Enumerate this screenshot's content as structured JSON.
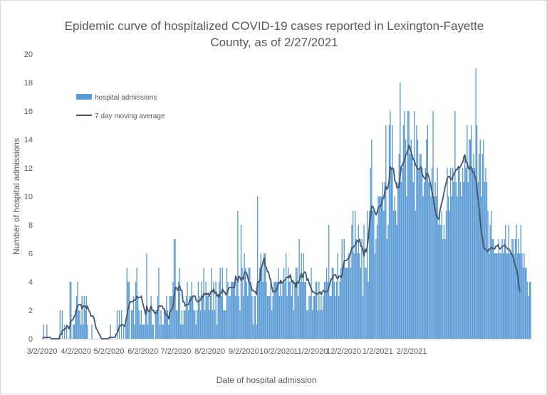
{
  "chart_data": {
    "type": "bar",
    "title": "Epidemic curve of hospitalized COVID-19 cases reported in Lexington-Fayette County, as of 2/27/2021",
    "title_lines": [
      "Epidemic curve of hospitalized COVID-19 cases reported in Lexington-Fayette",
      "County, as of 2/27/2021"
    ],
    "xlabel": "Date of hospital admission",
    "ylabel": "Number of hospital admissions",
    "ylim": [
      0,
      20
    ],
    "y_ticks": [
      "0",
      "2",
      "4",
      "6",
      "8",
      "10",
      "12",
      "14",
      "16",
      "18",
      "20"
    ],
    "x_ticks": [
      "3/2/2020",
      "4/2/2020",
      "5/2/2020",
      "6/2/2020",
      "7/2/2020",
      "8/2/2020",
      "9/2/2020",
      "10/2/2020",
      "11/2/2020",
      "12/2/2020",
      "1/2/2021",
      "2/2/2021"
    ],
    "grid": false,
    "legend_position": "top-left",
    "colors": {
      "bars": "#5b9bd5",
      "line": "#44546a"
    },
    "series": [
      {
        "name": "hospital admissions",
        "type": "bar",
        "values": [
          0,
          1,
          0,
          0,
          1,
          0,
          0,
          0,
          0,
          0,
          0,
          0,
          0,
          0,
          0,
          0,
          2,
          0,
          2,
          0,
          1,
          0,
          1,
          0,
          0,
          4,
          4,
          0,
          1,
          1,
          2,
          3,
          4,
          2,
          2,
          1,
          3,
          1,
          3,
          2,
          3,
          1,
          0,
          0,
          0,
          1,
          0,
          0,
          0,
          0,
          0,
          0,
          0,
          0,
          0,
          0,
          0,
          0,
          0,
          0,
          0,
          0,
          1,
          0,
          0,
          0,
          0,
          0,
          2,
          0,
          2,
          0,
          2,
          0,
          1,
          0,
          1,
          5,
          4,
          4,
          0,
          2,
          2,
          3,
          1,
          4,
          5,
          3,
          2,
          1,
          2,
          1,
          1,
          1,
          2,
          6,
          1,
          2,
          2,
          3,
          1,
          1,
          0,
          2,
          2,
          3,
          5,
          1,
          2,
          1,
          1,
          2,
          2,
          3,
          2,
          1,
          3,
          3,
          3,
          4,
          7,
          7,
          2,
          2,
          4,
          5,
          1,
          2,
          1,
          2,
          2,
          3,
          4,
          2,
          3,
          3,
          4,
          3,
          2,
          2,
          1,
          2,
          4,
          3,
          2,
          4,
          3,
          5,
          2,
          4,
          3,
          3,
          2,
          3,
          5,
          2,
          4,
          2,
          4,
          1,
          3,
          4,
          5,
          3,
          5,
          2,
          2,
          2,
          5,
          4,
          3,
          3,
          4,
          4,
          4,
          4,
          3,
          4,
          9,
          3,
          2,
          8,
          5,
          3,
          6,
          5,
          4,
          3,
          5,
          5,
          4,
          3,
          1,
          3,
          3,
          1,
          10,
          4,
          5,
          6,
          5,
          4,
          6,
          6,
          4,
          3,
          3,
          3,
          4,
          2,
          3,
          4,
          4,
          4,
          4,
          5,
          3,
          4,
          3,
          4,
          5,
          4,
          6,
          3,
          5,
          4,
          4,
          3,
          4,
          2,
          4,
          5,
          5,
          3,
          7,
          4,
          6,
          4,
          6,
          4,
          4,
          2,
          2,
          3,
          3,
          5,
          2,
          3,
          3,
          4,
          4,
          2,
          4,
          2,
          3,
          2,
          3,
          4,
          4,
          5,
          4,
          8,
          3,
          3,
          5,
          5,
          4,
          3,
          4,
          6,
          3,
          4,
          5,
          7,
          5,
          7,
          5,
          5,
          5,
          6,
          6,
          5,
          8,
          9,
          6,
          9,
          7,
          6,
          8,
          6,
          5,
          7,
          3,
          8,
          5,
          5,
          9,
          4,
          9,
          12,
          14,
          9,
          9,
          6,
          7,
          8,
          10,
          10,
          10,
          10,
          11,
          9,
          11,
          15,
          7,
          8,
          15,
          16,
          12,
          15,
          9,
          10,
          9,
          8,
          11,
          13,
          18,
          11,
          12,
          15,
          16,
          14,
          10,
          16,
          16,
          13,
          14,
          13,
          11,
          16,
          9,
          15,
          14,
          12,
          13,
          13,
          12,
          10,
          11,
          12,
          14,
          15,
          11,
          11,
          10,
          12,
          16,
          10,
          11,
          10,
          12,
          8,
          9,
          8,
          9,
          7,
          8,
          7,
          9,
          12,
          10,
          9,
          12,
          10,
          12,
          11,
          16,
          11,
          10,
          12,
          12,
          11,
          10,
          12,
          11,
          13,
          12,
          15,
          11,
          14,
          14,
          15,
          12,
          13,
          12,
          19,
          15,
          11,
          13,
          14,
          10,
          13,
          14,
          11,
          12,
          11,
          9,
          6,
          8,
          9,
          7,
          7,
          6,
          6,
          6,
          6,
          7,
          6,
          6,
          7,
          6,
          7,
          8,
          6,
          6,
          8,
          6,
          6,
          7,
          7,
          6,
          7,
          8,
          6,
          7,
          6,
          8,
          6,
          5,
          6,
          5,
          5,
          4,
          3,
          4,
          4
        ]
      },
      {
        "name": "7 day moving average",
        "type": "line",
        "values": [
          0,
          0.1,
          0.1,
          0.1,
          0.1,
          0.1,
          0.1,
          0.1,
          0,
          0,
          0,
          0,
          0,
          0,
          0,
          0,
          0.3,
          0.3,
          0.6,
          0.6,
          0.7,
          0.7,
          0.9,
          0.9,
          0.7,
          0.9,
          1.3,
          1.3,
          1.4,
          1.6,
          1.7,
          2.1,
          2.3,
          2.4,
          2.4,
          2.4,
          2.1,
          2.3,
          2.3,
          2.3,
          2.1,
          2.3,
          2,
          1.9,
          1.6,
          1.6,
          1.6,
          1.4,
          1,
          0.7,
          0.6,
          0.4,
          0.3,
          0.1,
          0,
          0,
          0,
          0,
          0,
          0,
          0,
          0.1,
          0.1,
          0.1,
          0.1,
          0.1,
          0.1,
          0.3,
          0.4,
          0.6,
          0.9,
          0.9,
          1,
          1,
          0.9,
          0.9,
          1.3,
          1.7,
          2.1,
          2.4,
          2.6,
          2.6,
          2.6,
          2.7,
          2.7,
          2.8,
          3,
          2.9,
          2.9,
          2.9,
          3,
          2.6,
          2.3,
          2,
          1.7,
          2.3,
          2,
          1.9,
          2.1,
          2.3,
          2,
          2,
          1.8,
          1.8,
          1.8,
          2,
          2.3,
          2.3,
          2.3,
          2.3,
          2.1,
          2.1,
          1.7,
          1.7,
          1.6,
          1.4,
          1.9,
          2,
          2.1,
          2.3,
          3,
          3.6,
          3.6,
          3.4,
          3.6,
          3.7,
          3.4,
          3.4,
          2.6,
          2.6,
          2.3,
          2.4,
          2.4,
          2.4,
          2.7,
          2.7,
          2.9,
          3,
          3,
          3,
          2.7,
          2.6,
          2.6,
          2.7,
          2.7,
          3,
          2.9,
          3.2,
          3.1,
          3.2,
          3.1,
          3.2,
          3,
          3.2,
          3.4,
          3.3,
          3.5,
          3.2,
          3.3,
          3,
          3.1,
          2.9,
          3.2,
          3.2,
          3.5,
          3.3,
          3.3,
          3.1,
          3.2,
          3.4,
          3.6,
          3.6,
          3.6,
          3.6,
          3.6,
          3.6,
          4.4,
          4.2,
          4,
          4.4,
          4.3,
          4.1,
          4.3,
          4.2,
          4.7,
          4.7,
          4.6,
          4.3,
          4,
          3.9,
          3.7,
          3.4,
          3.4,
          3.3,
          3.3,
          3.1,
          4,
          4,
          4.1,
          4.9,
          5.1,
          5.4,
          5.7,
          5.1,
          5,
          4.7,
          4.7,
          4.3,
          4.1,
          3.6,
          3.3,
          3.3,
          3.3,
          3.4,
          3.6,
          3.9,
          3.9,
          4.1,
          3.9,
          4,
          4.1,
          4.1,
          4.3,
          4.3,
          4.4,
          4.3,
          4.5,
          4,
          4.1,
          3.9,
          3.9,
          3.6,
          4,
          3.9,
          4.1,
          4.4,
          4.6,
          4.3,
          4.6,
          4.7,
          4.6,
          4.1,
          4.2,
          3.9,
          3.7,
          3.5,
          3.3,
          3.3,
          3.2,
          3.2,
          3.1,
          3.2,
          3.2,
          3.3,
          3.1,
          3.3,
          3.4,
          3.3,
          3.3,
          3.3,
          3.4,
          3.6,
          3.9,
          4.2,
          4.2,
          4.4,
          4.5,
          4.5,
          4.3,
          4.2,
          4.4,
          4.4,
          4.3,
          4.5,
          5,
          5.5,
          5.5,
          5.5,
          5.6,
          5.7,
          5.8,
          6.1,
          6.4,
          6.4,
          6.5,
          6.6,
          6.8,
          6.9,
          6.8,
          7,
          6.5,
          6.5,
          6.2,
          5.8,
          6.3,
          6.1,
          6.5,
          7.1,
          8.1,
          8.6,
          9.3,
          9.3,
          9.1,
          8.9,
          8.7,
          8.9,
          9.2,
          9.3,
          9.3,
          9.5,
          9.8,
          9.9,
          10.4,
          10.7,
          10.5,
          10.7,
          11.2,
          12.1,
          11.9,
          12,
          11.9,
          11.1,
          11,
          10.6,
          10.6,
          10.7,
          11.5,
          12.1,
          12.2,
          12.4,
          12.6,
          12.9,
          13,
          13.3,
          13.6,
          13.4,
          13.1,
          12.8,
          12.6,
          12.5,
          12.2,
          12.1,
          11.9,
          11.9,
          12,
          12.1,
          11.6,
          11.4,
          11.3,
          11.2,
          11.6,
          11.6,
          11.4,
          11.1,
          10.7,
          10.3,
          9.9,
          9.4,
          9,
          8.6,
          8.5,
          8.4,
          8.9,
          9.3,
          9.6,
          9.9,
          10.3,
          10.7,
          11,
          11.3,
          11.4,
          11.4,
          11.2,
          11.2,
          11.4,
          11.6,
          11.7,
          11.9,
          11.9,
          12.1,
          12,
          12.1,
          12.3,
          12.4,
          12.8,
          12.9,
          12.4,
          12.4,
          12,
          11.9,
          12.1,
          12,
          11.7,
          11.7,
          11.4,
          11.2,
          10.4,
          9.8,
          9.1,
          8.2,
          7.5,
          7,
          6.5,
          6.3,
          6.3,
          6.2,
          6.1,
          6.3,
          6.3,
          6.4,
          6.4,
          6.3,
          6.3,
          6.5,
          6.5,
          6.6,
          6.4,
          6.3,
          6.4,
          6.5,
          6.5,
          6.6,
          6.5,
          6.4,
          6.3,
          6.3,
          6.2,
          6,
          5.9,
          5.7,
          5.4,
          5.1,
          4.9,
          4.5,
          3.8,
          3.3
        ]
      }
    ]
  }
}
